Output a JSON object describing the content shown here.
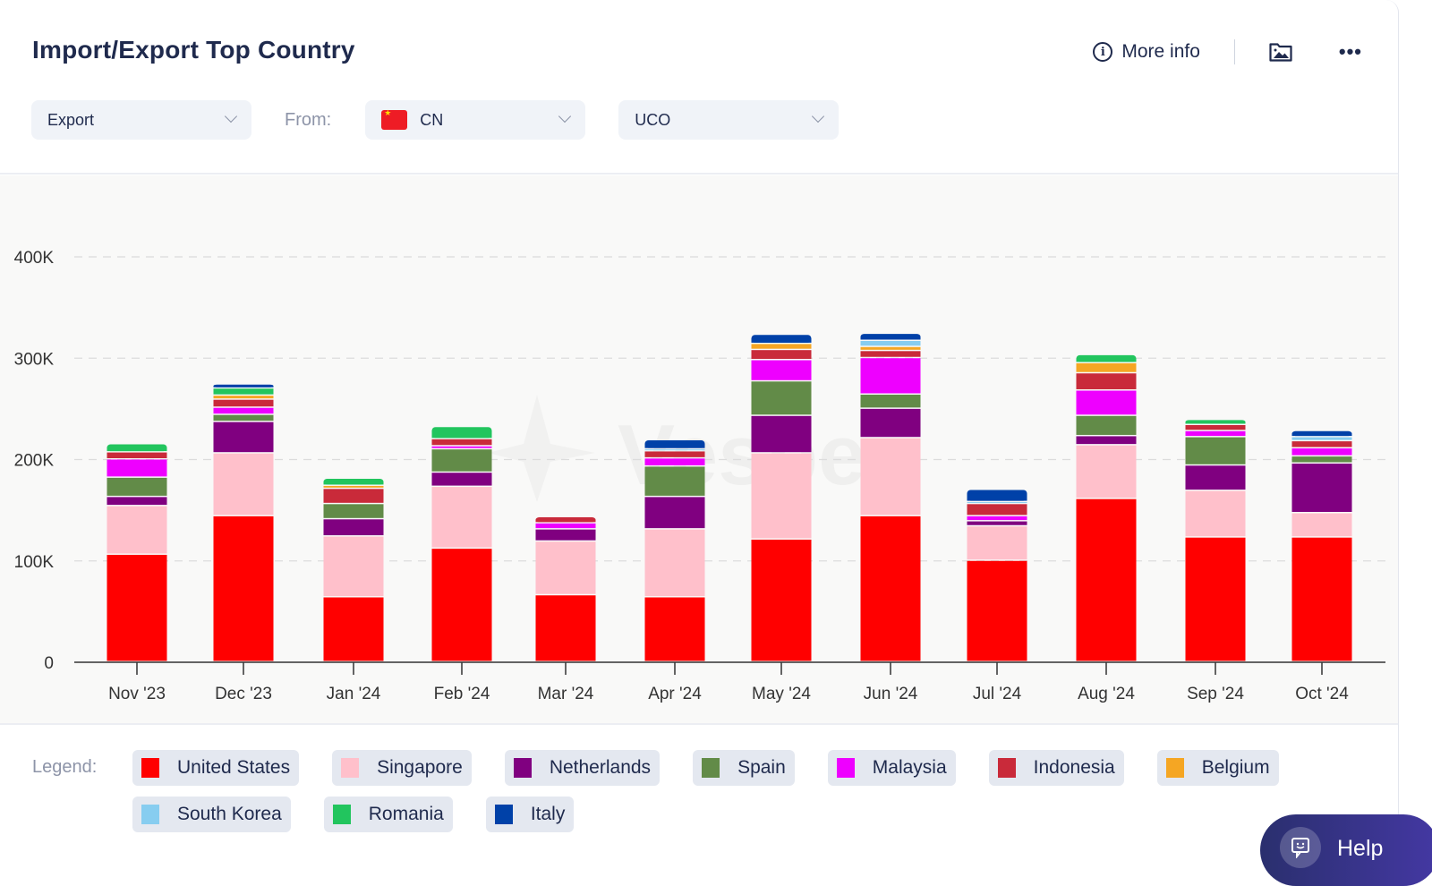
{
  "header": {
    "title": "Import/Export Top Country",
    "more_info_label": "More info",
    "icons": {
      "info": "info-circle-icon",
      "image": "image-folder-icon",
      "more": "more-horizontal-icon"
    }
  },
  "filters": {
    "trade_type": "Export",
    "from_label": "From:",
    "country_code": "CN",
    "country_flag": "china-flag-icon",
    "product": "UCO"
  },
  "watermark": "Vespe",
  "legend": {
    "label": "Legend:"
  },
  "help": {
    "label": "Help",
    "icon": "chat-smile-icon"
  },
  "chart_data": {
    "type": "bar",
    "stacked": true,
    "title": "Import/Export Top Country",
    "xlabel": "",
    "ylabel": "",
    "ylim": [
      0,
      450000
    ],
    "yticks": [
      0,
      100000,
      200000,
      300000,
      400000
    ],
    "ytick_labels": [
      "0",
      "100K",
      "200K",
      "300K",
      "400K"
    ],
    "grid": true,
    "legend_position": "bottom",
    "categories": [
      "Nov '23",
      "Dec '23",
      "Jan '24",
      "Feb '24",
      "Mar '24",
      "Apr '24",
      "May '24",
      "Jun '24",
      "Jul '24",
      "Aug '24",
      "Sep '24",
      "Oct '24"
    ],
    "series": [
      {
        "name": "United States",
        "color": "#ff0000",
        "values": [
          106000,
          144000,
          64000,
          112000,
          66000,
          64000,
          121000,
          144000,
          100000,
          161000,
          123000,
          123000
        ]
      },
      {
        "name": "Singapore",
        "color": "#ffc0cb",
        "values": [
          48000,
          62000,
          60000,
          61000,
          53000,
          67000,
          85000,
          77000,
          34000,
          53000,
          46000,
          24000
        ]
      },
      {
        "name": "Netherlands",
        "color": "#800080",
        "values": [
          9000,
          31000,
          17000,
          14000,
          12000,
          32000,
          37000,
          29000,
          5000,
          9000,
          25000,
          49000
        ]
      },
      {
        "name": "Spain",
        "color": "#628b48",
        "values": [
          19000,
          7000,
          15000,
          23000,
          0,
          30000,
          34000,
          14000,
          0,
          20000,
          28000,
          7000
        ]
      },
      {
        "name": "Malaysia",
        "color": "#ee00ff",
        "values": [
          18000,
          7000,
          0,
          3000,
          6000,
          8000,
          21000,
          36000,
          5000,
          25000,
          6000,
          8000
        ]
      },
      {
        "name": "Indonesia",
        "color": "#c92a3a",
        "values": [
          7000,
          8000,
          15000,
          7000,
          6000,
          7000,
          10000,
          7000,
          12000,
          17000,
          6000,
          7000
        ]
      },
      {
        "name": "Belgium",
        "color": "#f5a623",
        "values": [
          0,
          4000,
          3000,
          0,
          0,
          0,
          6000,
          4000,
          0,
          10000,
          0,
          0
        ]
      },
      {
        "name": "South Korea",
        "color": "#87cdf0",
        "values": [
          0,
          0,
          0,
          0,
          0,
          2000,
          0,
          6000,
          2000,
          0,
          0,
          4000
        ]
      },
      {
        "name": "Romania",
        "color": "#22c55e",
        "values": [
          8000,
          7000,
          7000,
          12000,
          0,
          0,
          0,
          0,
          0,
          8000,
          5000,
          0
        ]
      },
      {
        "name": "Italy",
        "color": "#0041a8",
        "values": [
          0,
          4000,
          0,
          0,
          0,
          9000,
          9000,
          7000,
          12000,
          0,
          0,
          6000
        ]
      }
    ]
  }
}
